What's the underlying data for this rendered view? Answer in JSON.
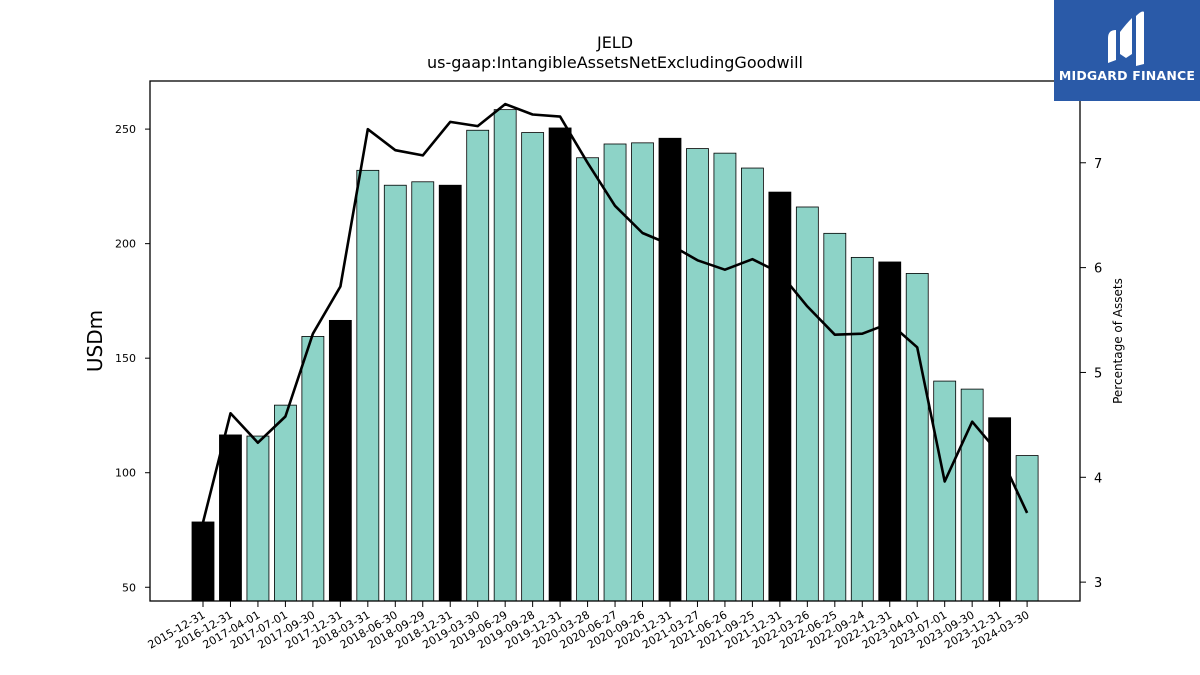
{
  "logo": {
    "text": "MIDGARD FINANCE",
    "icon": "midgard-logo-icon",
    "background": "#2a5aa8"
  },
  "chart_data": {
    "type": "bar",
    "title": "JELD",
    "subtitle": "us-gaap:IntangibleAssetsNetExcludingGoodwill",
    "ylabel": "USDm",
    "y2label": "Percentage of Assets",
    "ylim": [
      44,
      271
    ],
    "y2lim": [
      2.82,
      7.78
    ],
    "yticks": [
      50,
      100,
      150,
      200,
      250
    ],
    "y2ticks": [
      3,
      4,
      5,
      6,
      7
    ],
    "colors": {
      "bar": "#8dd3c7",
      "bar_highlight": "#000000",
      "line": "#000000"
    },
    "categories": [
      "2015-12-31",
      "2016-12-31",
      "2017-04-01",
      "2017-07-01",
      "2017-09-30",
      "2017-12-31",
      "2018-03-31",
      "2018-06-30",
      "2018-09-29",
      "2018-12-31",
      "2019-03-30",
      "2019-06-29",
      "2019-09-28",
      "2019-12-31",
      "2020-03-28",
      "2020-06-27",
      "2020-09-26",
      "2020-12-31",
      "2021-03-27",
      "2021-06-26",
      "2021-09-25",
      "2021-12-31",
      "2022-03-26",
      "2022-06-25",
      "2022-09-24",
      "2022-12-31",
      "2023-04-01",
      "2023-07-01",
      "2023-09-30",
      "2023-12-31",
      "2024-03-30"
    ],
    "series": [
      {
        "type": "bar",
        "values": [
          78.5,
          116.5,
          116,
          129.5,
          159.5,
          166.5,
          232,
          225.5,
          227,
          225.5,
          249.5,
          258.5,
          248.5,
          250.5,
          237.5,
          243.5,
          244,
          246,
          241.5,
          239.5,
          233,
          222.5,
          216,
          204.5,
          194,
          192,
          187,
          140,
          136.5,
          124,
          107.5
        ]
      },
      {
        "type": "line",
        "axis": "right",
        "values": [
          3.57,
          4.61,
          4.33,
          4.58,
          5.37,
          5.82,
          7.32,
          7.12,
          7.07,
          7.39,
          7.35,
          7.56,
          7.46,
          7.44,
          7.0,
          6.59,
          6.33,
          6.22,
          6.07,
          5.98,
          6.08,
          5.95,
          5.63,
          5.36,
          5.37,
          5.47,
          5.24,
          3.96,
          4.53,
          4.22,
          3.66
        ]
      }
    ],
    "highlight_indices": [
      0,
      1,
      5,
      9,
      13,
      17,
      21,
      25,
      29
    ]
  }
}
